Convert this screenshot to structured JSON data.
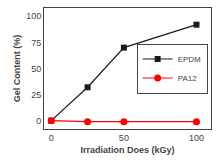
{
  "chart_data": {
    "type": "line",
    "xlabel": "Irradiation Does (kGy)",
    "ylabel": "Gel Content (%)",
    "series": [
      {
        "name": "EPDM",
        "color": "#1a1a1a",
        "marker": "square",
        "x": [
          0,
          25,
          50,
          100
        ],
        "values": [
          0,
          32,
          70,
          92
        ]
      },
      {
        "name": "PA12",
        "color": "#ff0000",
        "marker": "circle",
        "x": [
          0,
          25,
          50,
          100
        ],
        "values": [
          0,
          -1,
          -1,
          -1
        ]
      }
    ],
    "xlim": [
      -5,
      110
    ],
    "xticks": [
      0,
      50,
      100
    ],
    "ylim": [
      -8,
      108
    ],
    "yticks": [
      0,
      25,
      50,
      75,
      100
    ],
    "grid": false,
    "legend": "right"
  }
}
